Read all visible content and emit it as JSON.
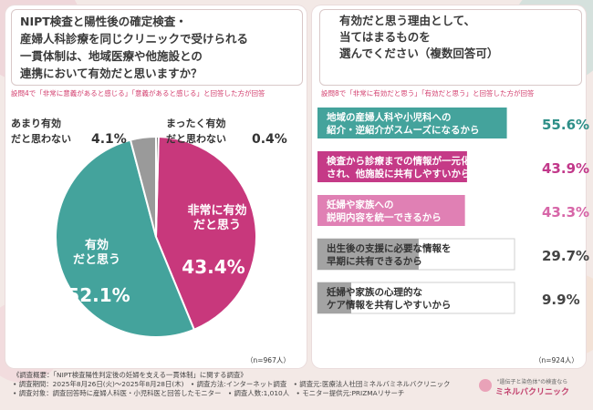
{
  "colors": {
    "magenta": "#c8387c",
    "teal": "#44a39c",
    "gray": "#9a9a9a",
    "pink_light": "#e080b4",
    "bar_magenta": "#c53a87",
    "bar_gray": "#a3a3a3",
    "value_green": "#2e8f88",
    "value_magenta": "#c2388a",
    "value_pink": "#d766a8",
    "value_dark": "#444444"
  },
  "left": {
    "question": "NIPT検査と陽性後の確定検査・\n産婦人科診療を同じクリニックで受けられる\n一貫体制は、地域医療や他施設との\n連携において有効だと思いますか？",
    "note_prefix": "設問4で",
    "note_quote": "「非常に意義があると感じる」「意義があると感じる」",
    "note_suffix": "と回答した方が回答",
    "n": "（n=967人）"
  },
  "right": {
    "question": "有効だと思う理由として、\n当てはまるものを\n選んでください（複数回答可）",
    "note_prefix": "設問8で",
    "note_quote": "「非常に有効だと思う」「有効だと思う」",
    "note_suffix": "と回答した方が回答",
    "n": "（n=924人）"
  },
  "chart_data": [
    {
      "type": "pie",
      "slices": [
        {
          "label": "非常に有効だと思う",
          "value": 43.4,
          "value_text": "43.4%",
          "color": "#c8387c"
        },
        {
          "label": "有効だと思う",
          "value": 52.1,
          "value_text": "52.1%",
          "color": "#44a39c"
        },
        {
          "label": "あまり有効だと思わない",
          "value": 4.1,
          "value_text": "4.1%",
          "color": "#9a9a9a"
        },
        {
          "label": "まったく有効だと思わない",
          "value": 0.4,
          "value_text": "0.4%",
          "color": "#555555"
        }
      ]
    },
    {
      "type": "bar",
      "orientation": "horizontal",
      "categories": [
        "地域の産婦人科や小児科への紹介・逆紹介がスムーズになるから",
        "検査から診療までの情報が一元化され、他施設に共有しやすいから",
        "妊婦や家族への説明内容を統一できるから",
        "出生後の支援に必要な情報を早期に共有できるから",
        "妊婦や家族の心理的なケア情報を共有しやすいから"
      ],
      "bar_text": [
        "地域の産婦人科や小児科への\n紹介・逆紹介がスムーズになるから",
        "検査から診療までの情報が一元化\nされ、他施設に共有しやすいから",
        "妊婦や家族への\n説明内容を統一できるから",
        "出生後の支援に必要な情報を\n早期に共有できるから",
        "妊婦や家族の心理的な\nケア情報を共有しやすいから"
      ],
      "values": [
        55.6,
        43.9,
        43.3,
        29.7,
        9.9
      ],
      "value_text": [
        "55.6%",
        "43.9%",
        "43.3%",
        "29.7%",
        "9.9%"
      ]
    }
  ],
  "footer": "《調査概要：「NIPT検査陽性判定後の妊婦を支える一貫体制」に関する調査》\n• 調査期間：2025年8月26日(火)～2025年8月28日(木)　• 調査方法:インターネット調査　• 調査元:医療法人社団ミネルバミネルバクリニック\n• 調査対象：調査回答時に産婦人科医・小児科医と回答したモニター　• 調査人数:1,010人　• モニター提供元:PRIZMAリサーチ",
  "logo": {
    "tagline": "\"遺伝子と染色体\"の検査なら",
    "name": "ミネルバクリニック"
  }
}
